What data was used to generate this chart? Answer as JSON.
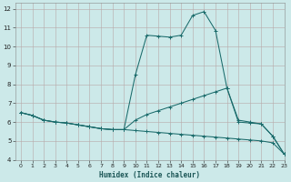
{
  "xlabel": "Humidex (Indice chaleur)",
  "xlim": [
    -0.5,
    23
  ],
  "ylim": [
    4,
    12.3
  ],
  "xticks": [
    0,
    1,
    2,
    3,
    4,
    5,
    6,
    7,
    8,
    9,
    10,
    11,
    12,
    13,
    14,
    15,
    16,
    17,
    18,
    19,
    20,
    21,
    22,
    23
  ],
  "yticks": [
    4,
    5,
    6,
    7,
    8,
    9,
    10,
    11,
    12
  ],
  "bg_color": "#cce9e9",
  "grid_color": "#b8a8a8",
  "line_color": "#1a6b6b",
  "lines": [
    {
      "x": [
        0,
        1,
        2,
        3,
        4,
        5,
        6,
        7,
        8,
        9,
        10,
        11,
        12,
        13,
        14,
        15,
        16,
        17,
        18,
        19,
        20,
        21,
        22,
        23
      ],
      "y": [
        6.5,
        6.35,
        6.1,
        6.0,
        5.95,
        5.85,
        5.75,
        5.65,
        5.6,
        5.6,
        8.5,
        10.6,
        10.55,
        10.5,
        10.6,
        11.65,
        11.85,
        10.85,
        7.8,
        6.0,
        5.95,
        5.9,
        5.25,
        4.3
      ]
    },
    {
      "x": [
        0,
        1,
        2,
        3,
        4,
        5,
        6,
        7,
        8,
        9,
        10,
        11,
        12,
        13,
        14,
        15,
        16,
        17,
        18,
        19,
        20,
        21,
        22,
        23
      ],
      "y": [
        6.5,
        6.35,
        6.1,
        6.0,
        5.95,
        5.85,
        5.75,
        5.65,
        5.6,
        5.6,
        6.1,
        6.4,
        6.6,
        6.8,
        7.0,
        7.2,
        7.4,
        7.6,
        7.8,
        6.1,
        6.0,
        5.9,
        5.25,
        4.3
      ]
    },
    {
      "x": [
        0,
        1,
        2,
        3,
        4,
        5,
        6,
        7,
        8,
        9,
        10,
        11,
        12,
        13,
        14,
        15,
        16,
        17,
        18,
        19,
        20,
        21,
        22,
        23
      ],
      "y": [
        6.5,
        6.35,
        6.1,
        6.0,
        5.95,
        5.85,
        5.75,
        5.65,
        5.6,
        5.6,
        5.55,
        5.5,
        5.45,
        5.4,
        5.35,
        5.3,
        5.25,
        5.2,
        5.15,
        5.1,
        5.05,
        5.0,
        4.9,
        4.3
      ]
    }
  ]
}
